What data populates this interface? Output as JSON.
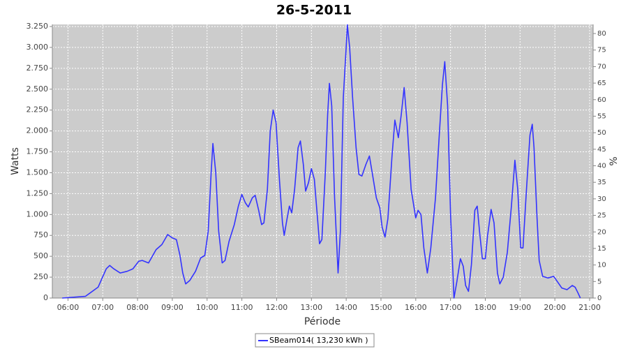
{
  "chart_data": {
    "type": "line",
    "title": "26-5-2011",
    "x_label": "Période",
    "y_label": "Watts",
    "y2_label": "%",
    "x": [
      "05:50",
      "06:30",
      "06:52",
      "07:06",
      "07:12",
      "07:19",
      "07:30",
      "07:42",
      "07:52",
      "08:02",
      "08:08",
      "08:19",
      "08:32",
      "08:42",
      "08:52",
      "09:00",
      "09:07",
      "09:13",
      "09:18",
      "09:23",
      "09:30",
      "09:40",
      "09:49",
      "09:56",
      "10:02",
      "10:07",
      "10:10",
      "10:15",
      "10:20",
      "10:26",
      "10:31",
      "10:38",
      "10:47",
      "10:54",
      "11:00",
      "11:06",
      "11:11",
      "11:18",
      "11:23",
      "11:29",
      "11:34",
      "11:38",
      "11:44",
      "11:49",
      "11:54",
      "11:59",
      "12:05",
      "12:10",
      "12:13",
      "12:18",
      "12:22",
      "12:26",
      "12:31",
      "12:37",
      "12:41",
      "12:46",
      "12:50",
      "12:55",
      "13:00",
      "13:05",
      "13:10",
      "13:14",
      "13:18",
      "13:24",
      "13:28",
      "13:31",
      "13:35",
      "13:40",
      "13:46",
      "13:50",
      "13:55",
      "14:00",
      "14:02",
      "14:06",
      "14:11",
      "14:17",
      "14:22",
      "14:27",
      "14:34",
      "14:40",
      "14:46",
      "14:52",
      "14:58",
      "15:02",
      "15:07",
      "15:12",
      "15:19",
      "15:24",
      "15:30",
      "15:35",
      "15:40",
      "15:45",
      "15:52",
      "16:00",
      "16:04",
      "16:09",
      "16:14",
      "16:20",
      "16:26",
      "16:34",
      "16:41",
      "16:46",
      "16:50",
      "16:55",
      "17:00",
      "17:06",
      "17:11",
      "17:17",
      "17:22",
      "17:26",
      "17:31",
      "17:36",
      "17:42",
      "17:46",
      "17:50",
      "17:55",
      "18:00",
      "18:04",
      "18:10",
      "18:15",
      "18:21",
      "18:25",
      "18:31",
      "18:38",
      "18:45",
      "18:51",
      "18:56",
      "19:01",
      "19:05",
      "19:11",
      "19:17",
      "19:21",
      "19:24",
      "19:29",
      "19:33",
      "19:39",
      "19:48",
      "19:58",
      "20:04",
      "20:12",
      "20:21",
      "20:30",
      "20:35",
      "20:40",
      "20:44"
    ],
    "series": [
      {
        "name": "SBeam014( 13,230 kWh )",
        "color": "#3333ff",
        "values": [
          0,
          20,
          130,
          350,
          390,
          350,
          300,
          320,
          350,
          440,
          450,
          420,
          580,
          640,
          760,
          720,
          700,
          520,
          300,
          170,
          210,
          320,
          480,
          510,
          800,
          1500,
          1850,
          1500,
          800,
          420,
          450,
          680,
          880,
          1100,
          1240,
          1140,
          1090,
          1200,
          1230,
          1050,
          880,
          900,
          1300,
          2000,
          2250,
          2100,
          1400,
          900,
          750,
          950,
          1100,
          1020,
          1300,
          1800,
          1880,
          1600,
          1280,
          1380,
          1550,
          1420,
          1000,
          650,
          700,
          1500,
          2200,
          2570,
          2300,
          1200,
          300,
          800,
          2400,
          3000,
          3270,
          3000,
          2400,
          1800,
          1480,
          1460,
          1600,
          1700,
          1450,
          1200,
          1080,
          850,
          730,
          950,
          1700,
          2130,
          1920,
          2200,
          2520,
          2100,
          1300,
          960,
          1050,
          1000,
          600,
          300,
          600,
          1200,
          2000,
          2550,
          2830,
          2300,
          1000,
          0,
          200,
          470,
          380,
          150,
          80,
          400,
          1050,
          1100,
          800,
          470,
          470,
          750,
          1060,
          900,
          300,
          170,
          250,
          550,
          1100,
          1650,
          1300,
          600,
          600,
          1300,
          1950,
          2080,
          1800,
          1000,
          450,
          260,
          240,
          260,
          200,
          120,
          100,
          150,
          130,
          60,
          0
        ]
      }
    ],
    "xlim": [
      "05:33",
      "21:06"
    ],
    "xticks": [
      "06:00",
      "07:00",
      "08:00",
      "09:00",
      "10:00",
      "11:00",
      "12:00",
      "13:00",
      "14:00",
      "15:00",
      "16:00",
      "17:00",
      "18:00",
      "19:00",
      "20:00",
      "21:00"
    ],
    "ylim": [
      0,
      3275
    ],
    "yticks": [
      0,
      250,
      500,
      750,
      {
        "value": 1000,
        "label": "1.000"
      },
      {
        "value": 1250,
        "label": "1.250"
      },
      {
        "value": 1500,
        "label": "1.500"
      },
      {
        "value": 1750,
        "label": "1.750"
      },
      {
        "value": 2000,
        "label": "2.000"
      },
      {
        "value": 2250,
        "label": "2.250"
      },
      {
        "value": 2500,
        "label": "2.500"
      },
      {
        "value": 2750,
        "label": "2.750"
      },
      {
        "value": 3000,
        "label": "3.000"
      },
      {
        "value": 3250,
        "label": "3.250"
      }
    ],
    "y2lim": [
      0,
      82.75
    ],
    "y2ticks": [
      0,
      5,
      10,
      15,
      20,
      25,
      30,
      35,
      40,
      45,
      50,
      55,
      60,
      65,
      70,
      75,
      80
    ],
    "grid": true,
    "legend": "bottom",
    "background": "#cccccc"
  }
}
